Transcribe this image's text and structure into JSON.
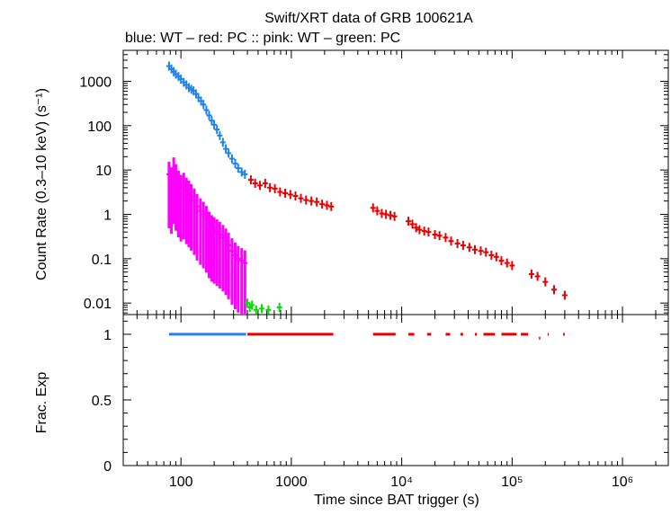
{
  "chart_data": {
    "type": "scatter",
    "title": "Swift/XRT data of GRB 100621A",
    "subtitle": "blue: WT  – red: PC  :: pink: WT  – green: PC",
    "xlabel": "Time since BAT trigger (s)",
    "xscale": "log",
    "xlim": [
      30,
      2600000
    ],
    "x_ticks": [
      {
        "value": 100,
        "label": "100"
      },
      {
        "value": 1000,
        "label": "1000"
      },
      {
        "value": 10000,
        "label": "10⁴"
      },
      {
        "value": 100000,
        "label": "10⁵"
      },
      {
        "value": 1000000,
        "label": "10⁶"
      }
    ],
    "grid": false,
    "colors": {
      "blue": "#1e82e6",
      "red": "#e60000",
      "pink": "#ff00ff",
      "green": "#00dd00"
    },
    "panels": [
      {
        "id": "rate",
        "ylabel": "Count Rate (0.3–10 keV) (s⁻¹)",
        "yscale": "log",
        "ylim": [
          0.0055,
          5000
        ],
        "y_ticks": [
          {
            "value": 0.01,
            "label": "0.01"
          },
          {
            "value": 0.1,
            "label": "0.1"
          },
          {
            "value": 1,
            "label": "1"
          },
          {
            "value": 10,
            "label": "10"
          },
          {
            "value": 100,
            "label": "100"
          },
          {
            "value": 1000,
            "label": "1000"
          }
        ],
        "series": [
          {
            "color": "#1e82e6",
            "points": [
              [
                78,
                2200
              ],
              [
                82,
                1900
              ],
              [
                86,
                1650
              ],
              [
                90,
                1450
              ],
              [
                95,
                1280
              ],
              [
                100,
                1120
              ],
              [
                106,
                950
              ],
              [
                112,
                830
              ],
              [
                118,
                720
              ],
              [
                124,
                660
              ],
              [
                130,
                610
              ],
              [
                137,
                520
              ],
              [
                144,
                430
              ],
              [
                152,
                360
              ],
              [
                160,
                300
              ],
              [
                170,
                225
              ],
              [
                180,
                170
              ],
              [
                190,
                130
              ],
              [
                200,
                105
              ],
              [
                212,
                82
              ],
              [
                225,
                60
              ],
              [
                240,
                42
              ],
              [
                255,
                30
              ],
              [
                270,
                24
              ],
              [
                290,
                18
              ],
              [
                310,
                14
              ],
              [
                330,
                11
              ],
              [
                355,
                9
              ],
              [
                380,
                8
              ]
            ]
          },
          {
            "color": "#ff00ff",
            "points": [
              [
                78,
                8
              ],
              [
                82,
                6
              ],
              [
                86,
                10
              ],
              [
                90,
                7
              ],
              [
                95,
                5
              ],
              [
                100,
                4
              ],
              [
                106,
                4.5
              ],
              [
                112,
                3.5
              ],
              [
                118,
                3
              ],
              [
                124,
                2.5
              ],
              [
                132,
                2
              ],
              [
                140,
                1.5
              ],
              [
                150,
                1.2
              ],
              [
                160,
                1
              ],
              [
                170,
                0.8
              ],
              [
                180,
                0.6
              ],
              [
                190,
                0.5
              ],
              [
                200,
                0.45
              ],
              [
                212,
                0.4
              ],
              [
                225,
                0.35
              ],
              [
                240,
                0.3
              ],
              [
                255,
                0.25
              ],
              [
                270,
                0.2
              ],
              [
                290,
                0.15
              ],
              [
                310,
                0.12
              ],
              [
                330,
                0.1
              ],
              [
                355,
                0.09
              ],
              [
                380,
                0.08
              ]
            ]
          },
          {
            "color": "#e60000",
            "points": [
              [
                430,
                6
              ],
              [
                470,
                5
              ],
              [
                520,
                4.5
              ],
              [
                580,
                5
              ],
              [
                640,
                4
              ],
              [
                710,
                3.8
              ],
              [
                790,
                3.2
              ],
              [
                880,
                3
              ],
              [
                980,
                2.8
              ],
              [
                1090,
                2.6
              ],
              [
                1220,
                2.3
              ],
              [
                1360,
                2.1
              ],
              [
                1520,
                2
              ],
              [
                1700,
                1.9
              ],
              [
                1900,
                1.7
              ],
              [
                2100,
                1.6
              ],
              [
                2300,
                1.5
              ],
              [
                5500,
                1.4
              ],
              [
                6000,
                1.2
              ],
              [
                6600,
                1.05
              ],
              [
                7200,
                1
              ],
              [
                7900,
                0.95
              ],
              [
                8600,
                0.9
              ],
              [
                11500,
                0.7
              ],
              [
                12500,
                0.6
              ],
              [
                13500,
                0.5
              ],
              [
                14500,
                0.45
              ],
              [
                16000,
                0.42
              ],
              [
                17500,
                0.4
              ],
              [
                20000,
                0.35
              ],
              [
                22000,
                0.33
              ],
              [
                25000,
                0.3
              ],
              [
                28000,
                0.25
              ],
              [
                32000,
                0.22
              ],
              [
                36000,
                0.2
              ],
              [
                41000,
                0.18
              ],
              [
                46000,
                0.16
              ],
              [
                52000,
                0.15
              ],
              [
                58000,
                0.14
              ],
              [
                65000,
                0.12
              ],
              [
                72000,
                0.11
              ],
              [
                80000,
                0.09
              ],
              [
                90000,
                0.08
              ],
              [
                100000,
                0.07
              ],
              [
                150000,
                0.045
              ],
              [
                170000,
                0.04
              ],
              [
                200000,
                0.03
              ],
              [
                240000,
                0.02
              ],
              [
                300000,
                0.015
              ]
            ]
          },
          {
            "color": "#00dd00",
            "points": [
              [
                400,
                0.01
              ],
              [
                420,
                0.008
              ],
              [
                440,
                0.009
              ],
              [
                480,
                0.007
              ],
              [
                540,
                0.0075
              ],
              [
                620,
                0.007
              ],
              [
                780,
                0.008
              ]
            ]
          }
        ]
      },
      {
        "id": "fracexp",
        "ylabel": "Frac. Exp",
        "yscale": "linear",
        "ylim": [
          0,
          1.15
        ],
        "y_ticks": [
          {
            "value": 0,
            "label": "0"
          },
          {
            "value": 0.5,
            "label": "0.5"
          },
          {
            "value": 1,
            "label": "1"
          }
        ],
        "segments": [
          {
            "color": "#1e82e6",
            "x": [
              78,
              390
            ],
            "value": 1
          },
          {
            "color": "#e60000",
            "x": [
              400,
              2400
            ],
            "value": 1
          },
          {
            "color": "#e60000",
            "x": [
              5500,
              8800
            ],
            "value": 1
          },
          {
            "color": "#e60000",
            "x": [
              11500,
              13000
            ],
            "value": 1
          },
          {
            "color": "#e60000",
            "x": [
              17000,
              18500
            ],
            "value": 1
          },
          {
            "color": "#e60000",
            "x": [
              25000,
              27500
            ],
            "value": 1
          },
          {
            "color": "#e60000",
            "x": [
              34000,
              36000
            ],
            "value": 1
          },
          {
            "color": "#e60000",
            "x": [
              46000,
              48000
            ],
            "value": 1
          },
          {
            "color": "#e60000",
            "x": [
              55000,
              70000
            ],
            "value": 1
          },
          {
            "color": "#e60000",
            "x": [
              80000,
              110000
            ],
            "value": 1
          },
          {
            "color": "#e60000",
            "x": [
              120000,
              140000
            ],
            "value": 1
          },
          {
            "color": "#e60000",
            "x": [
              175000,
              180000
            ],
            "value": 0.97
          },
          {
            "color": "#e60000",
            "x": [
              210000,
              215000
            ],
            "value": 1
          },
          {
            "color": "#e60000",
            "x": [
              290000,
              300000
            ],
            "value": 1
          }
        ]
      }
    ]
  }
}
